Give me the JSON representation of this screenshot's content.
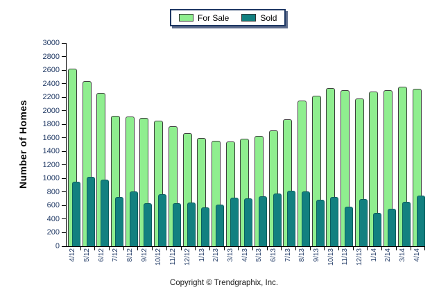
{
  "chart_data": {
    "type": "bar",
    "title": "",
    "xlabel": "",
    "ylabel": "Number of Homes",
    "ylim": [
      0,
      3000
    ],
    "ytick_interval": 200,
    "grid": false,
    "legend_position": "top-center",
    "categories": [
      "4/12",
      "5/12",
      "6/12",
      "7/12",
      "8/12",
      "9/12",
      "10/12",
      "11/12",
      "12/12",
      "1/13",
      "2/13",
      "3/13",
      "4/13",
      "5/13",
      "6/13",
      "7/13",
      "8/13",
      "9/13",
      "10/13",
      "11/13",
      "12/13",
      "1/14",
      "2/14",
      "3/14",
      "4/14"
    ],
    "series": [
      {
        "name": "For Sale",
        "color": "#8fee8f",
        "border_color": "#3f3f3f",
        "values": [
          2620,
          2440,
          2260,
          1920,
          1910,
          1890,
          1850,
          1770,
          1670,
          1600,
          1560,
          1550,
          1590,
          1630,
          1710,
          1870,
          2150,
          2220,
          2330,
          2300,
          2180,
          2280,
          2300,
          2360,
          2320
        ]
      },
      {
        "name": "Sold",
        "color": "#128080",
        "border_color": "#0b5f5f",
        "values": [
          950,
          1020,
          980,
          730,
          810,
          630,
          770,
          640,
          650,
          570,
          610,
          720,
          710,
          740,
          780,
          820,
          810,
          690,
          730,
          580,
          700,
          490,
          550,
          660,
          750
        ]
      }
    ]
  },
  "footer": {
    "copyright": "Copyright © Trendgraphix, Inc."
  },
  "colors": {
    "axis": "#000000",
    "tick_label": "#1f3864",
    "legend_border": "#1f3864",
    "legend_shadow": "#5d6c8c",
    "background": "#ffffff"
  }
}
